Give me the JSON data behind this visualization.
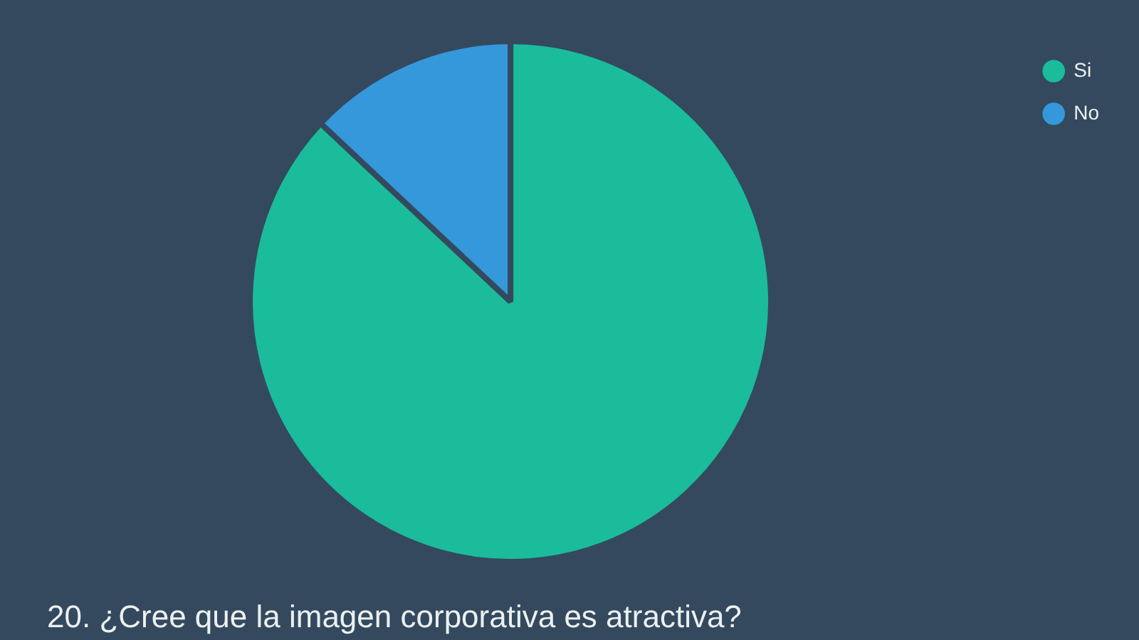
{
  "chart_data": {
    "type": "pie",
    "title": "20. ¿Cree que la imagen corporativa es atractiva?",
    "categories": [
      "Si",
      "No"
    ],
    "values": [
      87,
      13
    ],
    "colors": [
      "#1abc9c",
      "#3498db"
    ],
    "legend": "top right"
  }
}
